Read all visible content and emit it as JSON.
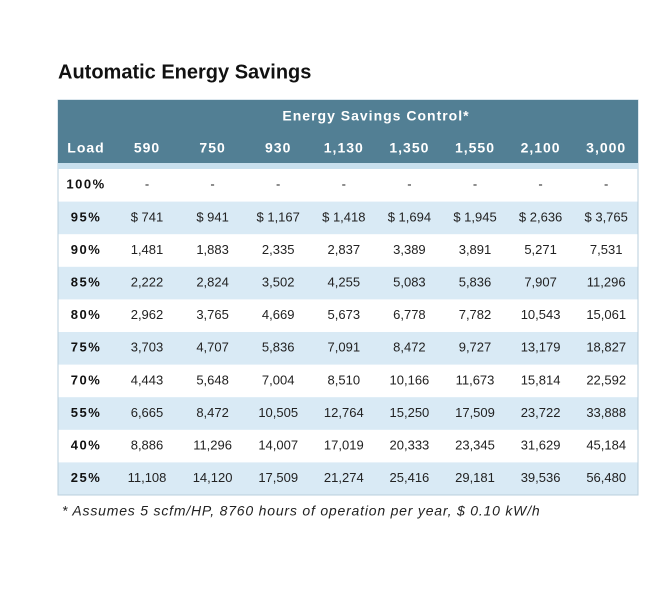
{
  "header": {
    "title": "Automatic Energy Savings"
  },
  "table": {
    "group_header": "Energy Savings Control*",
    "columns": [
      "Load",
      "590",
      "750",
      "930",
      "1,130",
      "1,350",
      "1,550",
      "2,100",
      "3,000"
    ],
    "rows": [
      [
        "100%",
        "-",
        "-",
        "-",
        "-",
        "-",
        "-",
        "-",
        "-"
      ],
      [
        "95%",
        "$ 741",
        "$ 941",
        "$ 1,167",
        "$ 1,418",
        "$ 1,694",
        "$ 1,945",
        "$ 2,636",
        "$ 3,765"
      ],
      [
        "90%",
        "1,481",
        "1,883",
        "2,335",
        "2,837",
        "3,389",
        "3,891",
        "5,271",
        "7,531"
      ],
      [
        "85%",
        "2,222",
        "2,824",
        "3,502",
        "4,255",
        "5,083",
        "5,836",
        "7,907",
        "11,296"
      ],
      [
        "80%",
        "2,962",
        "3,765",
        "4,669",
        "5,673",
        "6,778",
        "7,782",
        "10,543",
        "15,061"
      ],
      [
        "75%",
        "3,703",
        "4,707",
        "5,836",
        "7,091",
        "8,472",
        "9,727",
        "13,179",
        "18,827"
      ],
      [
        "70%",
        "4,443",
        "5,648",
        "7,004",
        "8,510",
        "10,166",
        "11,673",
        "15,814",
        "22,592"
      ],
      [
        "55%",
        "6,665",
        "8,472",
        "10,505",
        "12,764",
        "15,250",
        "17,509",
        "23,722",
        "33,888"
      ],
      [
        "40%",
        "8,886",
        "11,296",
        "14,007",
        "17,019",
        "20,333",
        "23,345",
        "31,629",
        "45,184"
      ],
      [
        "25%",
        "11,108",
        "14,120",
        "17,509",
        "21,274",
        "25,416",
        "29,181",
        "39,536",
        "56,480"
      ]
    ]
  },
  "footnote": "* Assumes 5 scfm/HP, 8760 hours of operation per year, $ 0.10 kW/h"
}
